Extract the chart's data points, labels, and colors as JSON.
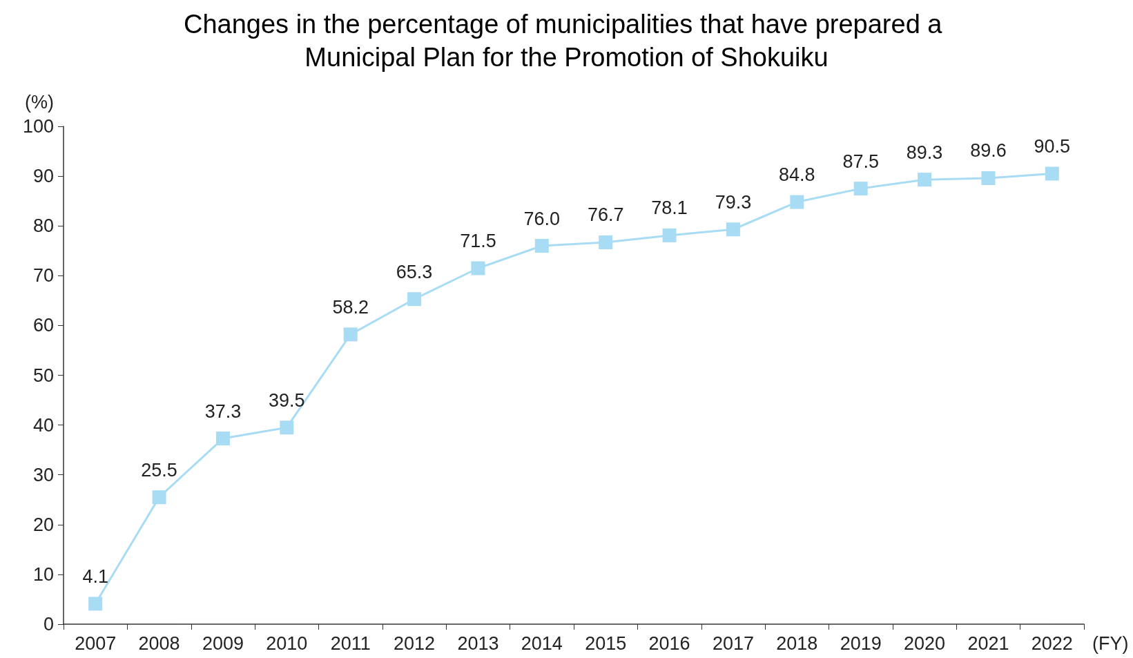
{
  "chart_data": {
    "type": "line",
    "title": "Changes in the percentage of municipalities that have prepared a Municipal Plan for the Promotion of Shokuiku",
    "xlabel": "(FY)",
    "ylabel": "(%)",
    "categories": [
      "2007",
      "2008",
      "2009",
      "2010",
      "2011",
      "2012",
      "2013",
      "2014",
      "2015",
      "2016",
      "2017",
      "2018",
      "2019",
      "2020",
      "2021",
      "2022"
    ],
    "series": [
      {
        "color": "#a8dcf5",
        "values": [
          4.1,
          25.5,
          37.3,
          39.5,
          58.2,
          65.3,
          71.5,
          76.0,
          76.7,
          78.1,
          79.3,
          84.8,
          87.5,
          89.3,
          89.6,
          90.5
        ]
      }
    ],
    "value_labels": [
      "4.1",
      "25.5",
      "37.3",
      "39.5",
      "58.2",
      "65.3",
      "71.5",
      "76.0",
      "76.7",
      "78.1",
      "79.3",
      "84.8",
      "87.5",
      "89.3",
      "89.6",
      "90.5"
    ],
    "ylim": [
      0,
      100
    ],
    "yticks": [
      0,
      10,
      20,
      30,
      40,
      50,
      60,
      70,
      80,
      90,
      100
    ],
    "grid": false,
    "marker": "square",
    "line_style": "solid"
  }
}
